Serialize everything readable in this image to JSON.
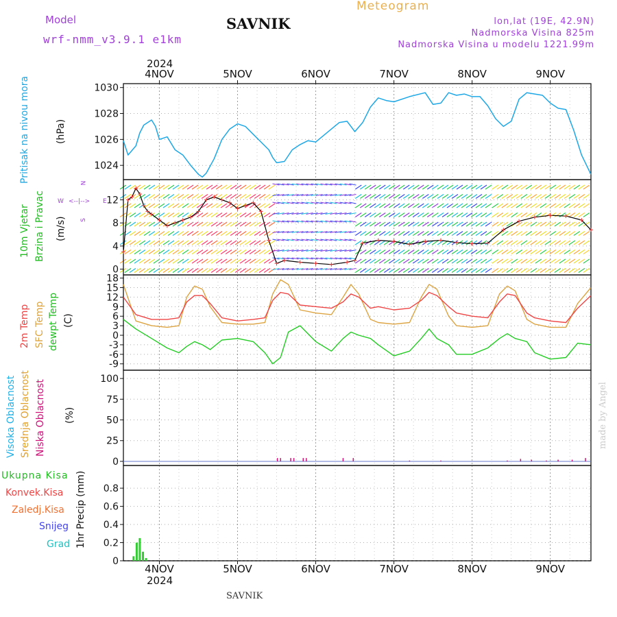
{
  "header": {
    "model_label": "Model",
    "model_name": "wrf-nmm_v3.9.1 e1km",
    "station": "SAVNIK",
    "meteogram": "Meteogram",
    "lonlat": "lon,lat (19E, 42.9N)",
    "altitude": "Nadmorska Visina 825m",
    "model_altitude": "Nadmorska Visina u modelu 1221.99m",
    "year": "2024",
    "footer_station": "SAVNIK",
    "credit": "made by Angel"
  },
  "colors": {
    "pressure": "#1ca7e6",
    "wind_speed": "#000000",
    "temp2m": "#ef4444",
    "sfc_temp": "#dca340",
    "dewpt": "#22cc22",
    "high_cloud": "#22b0e6",
    "mid_cloud": "#e0a030",
    "low_cloud": "#cc1177",
    "precip": "#33cc33",
    "label_purple": "#a040d8",
    "title_orange": "#e8b050"
  },
  "x_axis": {
    "day_labels": [
      "4NOV",
      "5NOV",
      "6NOV",
      "7NOV",
      "8NOV",
      "9NOV"
    ],
    "range_days": [
      3.54,
      9.52
    ]
  },
  "legend_labels": {
    "pressure": [
      "Pritisak na nivou mora",
      "(hPa)"
    ],
    "wind": [
      "10m Vjetar",
      "Brzina i Pravac",
      "(m/s)"
    ],
    "compass": {
      "n": "N",
      "s": "S",
      "e": "E",
      "w": "W"
    },
    "temp": [
      "2m Temp",
      "SFC Temp",
      "dewpt Temp",
      "(C)"
    ],
    "cloud": [
      "Visoka Oblacnost",
      "Srednja Oblacnost",
      "Niska Oblacnost",
      "(%)"
    ],
    "precip": [
      "Ukupna Kisa",
      "Konvek.Kisa",
      "Zaledj.Kisa",
      "Snijeg",
      "Grad"
    ],
    "precip_axis": "1hr Precip (mm)"
  },
  "chart_data": [
    {
      "type": "line",
      "title": "Pritisak na nivou mora",
      "ylabel": "(hPa)",
      "ylim": [
        1022.9,
        1030.3
      ],
      "yticks": [
        1024,
        1026,
        1028,
        1030
      ],
      "grid": true,
      "x": [
        3.54,
        3.6,
        3.7,
        3.75,
        3.8,
        3.9,
        3.95,
        4.0,
        4.1,
        4.2,
        4.3,
        4.4,
        4.5,
        4.55,
        4.6,
        4.7,
        4.8,
        4.9,
        5.0,
        5.1,
        5.2,
        5.3,
        5.4,
        5.45,
        5.5,
        5.6,
        5.7,
        5.8,
        5.9,
        6.0,
        6.2,
        6.3,
        6.4,
        6.5,
        6.6,
        6.7,
        6.8,
        6.9,
        7.0,
        7.2,
        7.4,
        7.5,
        7.6,
        7.7,
        7.8,
        7.9,
        8.0,
        8.1,
        8.2,
        8.3,
        8.4,
        8.5,
        8.6,
        8.7,
        8.8,
        8.9,
        9.0,
        9.1,
        9.2,
        9.3,
        9.4,
        9.52
      ],
      "series": [
        {
          "values": [
            1025.9,
            1024.8,
            1025.5,
            1026.5,
            1027.1,
            1027.5,
            1027.0,
            1026.0,
            1026.2,
            1025.2,
            1024.8,
            1024.0,
            1023.3,
            1023.1,
            1023.4,
            1024.5,
            1026.0,
            1026.8,
            1027.2,
            1027.0,
            1026.4,
            1025.8,
            1025.2,
            1024.6,
            1024.2,
            1024.3,
            1025.2,
            1025.6,
            1025.9,
            1025.8,
            1026.8,
            1027.3,
            1027.4,
            1026.6,
            1027.3,
            1028.5,
            1029.2,
            1029.0,
            1028.9,
            1029.3,
            1029.6,
            1028.7,
            1028.8,
            1029.6,
            1029.4,
            1029.5,
            1029.3,
            1029.3,
            1028.6,
            1027.6,
            1027.0,
            1027.4,
            1029.1,
            1029.6,
            1029.5,
            1029.4,
            1028.8,
            1028.4,
            1028.3,
            1026.7,
            1024.8,
            1023.3
          ]
        }
      ]
    },
    {
      "type": "line",
      "title": "10m Vjetar Brzina i Pravac",
      "ylabel": "(m/s)",
      "ylim": [
        -1,
        15.5
      ],
      "yticks": [
        0,
        4,
        8,
        12
      ],
      "grid": true,
      "wind_barbs": true,
      "x": [
        3.54,
        3.6,
        3.65,
        3.7,
        3.75,
        3.8,
        3.85,
        3.9,
        4.0,
        4.1,
        4.2,
        4.3,
        4.4,
        4.5,
        4.6,
        4.7,
        4.8,
        4.9,
        5.0,
        5.1,
        5.2,
        5.3,
        5.4,
        5.5,
        5.6,
        5.8,
        6.0,
        6.2,
        6.4,
        6.5,
        6.6,
        6.8,
        7.0,
        7.2,
        7.4,
        7.6,
        7.8,
        8.0,
        8.2,
        8.4,
        8.6,
        8.8,
        9.0,
        9.2,
        9.4,
        9.52
      ],
      "series": [
        {
          "name": "wind speed",
          "values": [
            3,
            12,
            12.5,
            14,
            13,
            11,
            10,
            9.5,
            8.5,
            7.5,
            8,
            8.5,
            9,
            10,
            12,
            12.5,
            12,
            11.5,
            10.5,
            11,
            11.5,
            10,
            5,
            1,
            1.5,
            1.2,
            1,
            0.8,
            1.2,
            1.5,
            4.5,
            5,
            4.8,
            4.3,
            4.8,
            5,
            4.6,
            4.4,
            4.5,
            6.8,
            8.3,
            9,
            9.3,
            9.2,
            8.5,
            6.8
          ]
        }
      ]
    },
    {
      "type": "line",
      "title": "2m Temp / SFC Temp / dewpt Temp",
      "ylabel": "(C)",
      "ylim": [
        -11,
        19
      ],
      "yticks": [
        18,
        15,
        12,
        9,
        6,
        3,
        0,
        -3,
        -6,
        -9
      ],
      "grid": true,
      "x": [
        3.54,
        3.7,
        3.9,
        4.1,
        4.25,
        4.35,
        4.45,
        4.55,
        4.65,
        4.8,
        5.0,
        5.2,
        5.35,
        5.45,
        5.55,
        5.65,
        5.8,
        6.0,
        6.2,
        6.35,
        6.45,
        6.55,
        6.7,
        6.8,
        7.0,
        7.2,
        7.35,
        7.45,
        7.55,
        7.7,
        7.8,
        8.0,
        8.2,
        8.35,
        8.45,
        8.55,
        8.7,
        8.8,
        9.0,
        9.2,
        9.35,
        9.52
      ],
      "series": [
        {
          "name": "2m Temp",
          "values": [
            12,
            6.5,
            5,
            5,
            5.5,
            10.5,
            12.5,
            12.5,
            10,
            5.5,
            4.5,
            5,
            5.5,
            11,
            13.5,
            13,
            9.5,
            9,
            8.5,
            10.5,
            13,
            12,
            8.5,
            9,
            8,
            8.5,
            11,
            13.5,
            12.5,
            9,
            7,
            6,
            5.5,
            10.5,
            13,
            12.5,
            7,
            5.5,
            4.5,
            4,
            8.5,
            12.5
          ]
        },
        {
          "name": "SFC Temp",
          "values": [
            16,
            4.5,
            3,
            2.5,
            3,
            12,
            15.5,
            14.5,
            9,
            4,
            3.5,
            3.5,
            4,
            13,
            17.5,
            16,
            8,
            7,
            6.5,
            12,
            16,
            13,
            5,
            4,
            3.5,
            4,
            12,
            16,
            14.5,
            6,
            3,
            2.5,
            3,
            13,
            15.5,
            14,
            5,
            3.5,
            2.5,
            2.5,
            10,
            15
          ]
        },
        {
          "name": "dewpt Temp",
          "values": [
            5,
            2,
            -1,
            -4,
            -5.5,
            -3.5,
            -2,
            -3,
            -4.5,
            -1.5,
            -1,
            -2,
            -5.5,
            -9,
            -7,
            1,
            3,
            -2,
            -5,
            -1,
            1,
            0,
            -1,
            -3,
            -6.5,
            -5,
            -1,
            2,
            -1,
            -3,
            -6,
            -6,
            -4,
            -1,
            0.5,
            -1,
            -2,
            -5.5,
            -7.5,
            -7,
            -2.5,
            -3
          ]
        }
      ]
    },
    {
      "type": "bar",
      "title": "Visoka / Srednja / Niska Oblacnost",
      "ylabel": "(%)",
      "ylim": [
        -5,
        110
      ],
      "yticks": [
        0,
        25,
        50,
        75,
        100
      ],
      "grid": true,
      "x": [
        5.51,
        5.55,
        5.68,
        5.72,
        5.84,
        5.88,
        6.35,
        6.48,
        7.2,
        7.6,
        8.45,
        8.62,
        8.76,
        8.95,
        9.1,
        9.28,
        9.45
      ],
      "series": [
        {
          "name": "Niska Oblacnost",
          "values": [
            4,
            4,
            4,
            4,
            4,
            4,
            4,
            4,
            1,
            1,
            1,
            3,
            2,
            1,
            2,
            2,
            4
          ]
        }
      ]
    },
    {
      "type": "bar",
      "title": "1hr Precip",
      "ylabel": "1hr Precip (mm)",
      "ylim": [
        0,
        1.05
      ],
      "yticks": [
        0,
        0.2,
        0.4,
        0.6,
        0.8
      ],
      "grid": true,
      "x": [
        3.67,
        3.71,
        3.75,
        3.79,
        3.83
      ],
      "series": [
        {
          "name": "Ukupna Kisa",
          "values": [
            0.05,
            0.2,
            0.25,
            0.1,
            0.03
          ]
        }
      ]
    }
  ]
}
